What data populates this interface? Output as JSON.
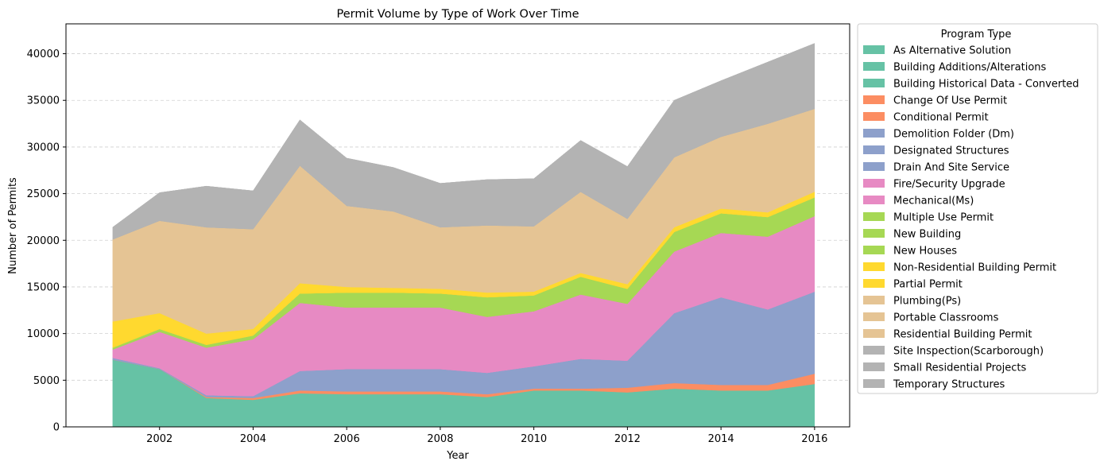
{
  "chart_data": {
    "type": "area",
    "stacked": true,
    "title": "Permit Volume by Type of Work Over Time",
    "xlabel": "Year",
    "ylabel": "Number of Permits",
    "xlim": [
      2000.0,
      2016.75
    ],
    "ylim": [
      0,
      43200
    ],
    "x_ticks": [
      2002,
      2004,
      2006,
      2008,
      2010,
      2012,
      2014,
      2016
    ],
    "y_ticks": [
      0,
      5000,
      10000,
      15000,
      20000,
      25000,
      30000,
      35000,
      40000
    ],
    "grid": "y-dashed",
    "legend_title": "Program Type",
    "legend_position": "outside right",
    "x": [
      2001,
      2002,
      2003,
      2004,
      2005,
      2006,
      2007,
      2008,
      2009,
      2010,
      2011,
      2012,
      2013,
      2014,
      2015,
      2016
    ],
    "series": [
      {
        "name": "As Alternative Solution",
        "color": "#66c2a5",
        "values": [
          0,
          0,
          0,
          0,
          0,
          0,
          0,
          0,
          0,
          0,
          0,
          0,
          0,
          0,
          0,
          0
        ]
      },
      {
        "name": "Building Additions/Alterations",
        "color": "#66c2a5",
        "values": [
          7200,
          6200,
          3100,
          2900,
          3600,
          3500,
          3500,
          3500,
          3200,
          3900,
          3900,
          3700,
          4100,
          3900,
          3900,
          4600
        ]
      },
      {
        "name": "Building Historical Data - Converted",
        "color": "#66c2a5",
        "values": [
          0,
          0,
          0,
          0,
          0,
          0,
          0,
          0,
          0,
          0,
          0,
          0,
          0,
          0,
          0,
          0
        ]
      },
      {
        "name": "Change Of Use Permit",
        "color": "#fc8d62",
        "values": [
          0,
          0,
          100,
          200,
          300,
          300,
          300,
          300,
          300,
          200,
          200,
          500,
          600,
          600,
          600,
          1100
        ]
      },
      {
        "name": "Conditional Permit",
        "color": "#fc8d62",
        "values": [
          0,
          0,
          0,
          0,
          0,
          0,
          0,
          0,
          0,
          0,
          0,
          0,
          0,
          0,
          0,
          0
        ]
      },
      {
        "name": "Demolition Folder (Dm)",
        "color": "#8da0cb",
        "values": [
          200,
          100,
          200,
          200,
          2100,
          2400,
          2400,
          2400,
          2300,
          2400,
          3200,
          2900,
          7500,
          9400,
          8100,
          8800
        ]
      },
      {
        "name": "Designated Structures",
        "color": "#8da0cb",
        "values": [
          0,
          0,
          0,
          0,
          0,
          0,
          0,
          0,
          0,
          0,
          0,
          0,
          0,
          0,
          0,
          0
        ]
      },
      {
        "name": "Drain And Site Service",
        "color": "#8da0cb",
        "values": [
          0,
          0,
          0,
          0,
          0,
          0,
          0,
          0,
          0,
          0,
          0,
          0,
          0,
          0,
          0,
          0
        ]
      },
      {
        "name": "Fire/Security Upgrade",
        "color": "#e78ac3",
        "values": [
          0,
          0,
          0,
          0,
          0,
          0,
          0,
          0,
          0,
          0,
          0,
          0,
          0,
          0,
          0,
          0
        ]
      },
      {
        "name": "Mechanical(Ms)",
        "color": "#e78ac3",
        "values": [
          900,
          3900,
          5100,
          6100,
          7300,
          6600,
          6600,
          6600,
          6000,
          5900,
          6900,
          6100,
          6600,
          6900,
          7800,
          8100
        ]
      },
      {
        "name": "Multiple Use Permit",
        "color": "#a6d854",
        "values": [
          0,
          0,
          0,
          0,
          0,
          0,
          0,
          0,
          0,
          0,
          0,
          0,
          0,
          0,
          0,
          0
        ]
      },
      {
        "name": "New Building",
        "color": "#a6d854",
        "values": [
          200,
          300,
          300,
          400,
          1000,
          1600,
          1600,
          1500,
          2100,
          1700,
          1900,
          1600,
          2100,
          2100,
          2100,
          2000
        ]
      },
      {
        "name": "New Houses",
        "color": "#a6d854",
        "values": [
          0,
          0,
          0,
          0,
          0,
          0,
          0,
          0,
          0,
          0,
          0,
          0,
          0,
          0,
          0,
          0
        ]
      },
      {
        "name": "Non-Residential Building Permit",
        "color": "#ffd92f",
        "values": [
          0,
          0,
          0,
          0,
          0,
          0,
          0,
          0,
          0,
          0,
          0,
          0,
          0,
          0,
          0,
          0
        ]
      },
      {
        "name": "Partial Permit",
        "color": "#ffd92f",
        "values": [
          2800,
          1700,
          1200,
          700,
          1100,
          600,
          500,
          500,
          500,
          400,
          400,
          500,
          500,
          500,
          500,
          600
        ]
      },
      {
        "name": "Plumbing(Ps)",
        "color": "#e5c494",
        "values": [
          8800,
          9900,
          11400,
          10700,
          12600,
          8700,
          8200,
          6600,
          7200,
          7000,
          8700,
          7000,
          7500,
          7700,
          9500,
          8900
        ]
      },
      {
        "name": "Portable Classrooms",
        "color": "#e5c494",
        "values": [
          0,
          0,
          0,
          0,
          0,
          0,
          0,
          0,
          0,
          0,
          0,
          0,
          0,
          0,
          0,
          0
        ]
      },
      {
        "name": "Residential Building Permit",
        "color": "#e5c494",
        "values": [
          0,
          0,
          0,
          0,
          0,
          0,
          0,
          0,
          0,
          0,
          0,
          0,
          0,
          0,
          0,
          0
        ]
      },
      {
        "name": "Site Inspection(Scarborough)",
        "color": "#b3b3b3",
        "values": [
          0,
          0,
          0,
          0,
          0,
          0,
          0,
          0,
          0,
          0,
          0,
          0,
          0,
          0,
          0,
          0
        ]
      },
      {
        "name": "Small Residential Projects",
        "color": "#b3b3b3",
        "values": [
          1300,
          3000,
          4400,
          4100,
          4900,
          5100,
          4700,
          4700,
          4900,
          5100,
          5500,
          5600,
          6100,
          6000,
          6600,
          7000
        ]
      },
      {
        "name": "Temporary Structures",
        "color": "#b3b3b3",
        "values": [
          0,
          0,
          0,
          0,
          0,
          0,
          0,
          0,
          0,
          0,
          0,
          0,
          0,
          0,
          0,
          0
        ]
      }
    ]
  }
}
